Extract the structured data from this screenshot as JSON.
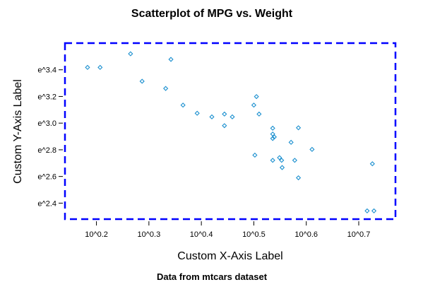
{
  "chart_data": {
    "type": "scatter",
    "title": "Scatterplot of MPG vs. Weight",
    "caption": "Data from mtcars dataset",
    "xlabel": "Custom X-Axis Label",
    "ylabel": "Custom Y-Axis Label",
    "x_scale": "log10",
    "y_scale": "ln",
    "xlim": [
      0.14,
      0.77
    ],
    "ylim": [
      2.28,
      3.6
    ],
    "x_ticks": [
      0.2,
      0.3,
      0.4,
      0.5,
      0.6,
      0.7
    ],
    "x_tick_labels": [
      "10^0.2",
      "10^0.3",
      "10^0.4",
      "10^0.5",
      "10^0.6",
      "10^0.7"
    ],
    "y_ticks": [
      2.4,
      2.6,
      2.8,
      3.0,
      3.2,
      3.4
    ],
    "y_tick_labels": [
      "e^2.4",
      "e^2.6",
      "e^2.8",
      "e^3.0",
      "e^3.2",
      "e^3.4"
    ],
    "grid": false,
    "marker_color": "#1a8fcf",
    "frame_color": "#0000ff",
    "points": [
      {
        "x": 0.183,
        "y": 3.418
      },
      {
        "x": 0.207,
        "y": 3.418
      },
      {
        "x": 0.265,
        "y": 3.52
      },
      {
        "x": 0.287,
        "y": 3.314
      },
      {
        "x": 0.332,
        "y": 3.26
      },
      {
        "x": 0.342,
        "y": 3.478
      },
      {
        "x": 0.365,
        "y": 3.135
      },
      {
        "x": 0.392,
        "y": 3.074
      },
      {
        "x": 0.42,
        "y": 3.047
      },
      {
        "x": 0.444,
        "y": 3.068
      },
      {
        "x": 0.444,
        "y": 2.981
      },
      {
        "x": 0.459,
        "y": 3.047
      },
      {
        "x": 0.5,
        "y": 3.135
      },
      {
        "x": 0.502,
        "y": 2.76
      },
      {
        "x": 0.505,
        "y": 3.199
      },
      {
        "x": 0.51,
        "y": 3.068
      },
      {
        "x": 0.536,
        "y": 2.962
      },
      {
        "x": 0.536,
        "y": 2.918
      },
      {
        "x": 0.536,
        "y": 2.885
      },
      {
        "x": 0.539,
        "y": 2.896
      },
      {
        "x": 0.536,
        "y": 2.721
      },
      {
        "x": 0.549,
        "y": 2.741
      },
      {
        "x": 0.553,
        "y": 2.721
      },
      {
        "x": 0.554,
        "y": 2.667
      },
      {
        "x": 0.571,
        "y": 2.856
      },
      {
        "x": 0.578,
        "y": 2.721
      },
      {
        "x": 0.585,
        "y": 2.965
      },
      {
        "x": 0.585,
        "y": 2.59
      },
      {
        "x": 0.611,
        "y": 2.803
      },
      {
        "x": 0.716,
        "y": 2.342
      },
      {
        "x": 0.729,
        "y": 2.342
      },
      {
        "x": 0.726,
        "y": 2.695
      }
    ]
  }
}
